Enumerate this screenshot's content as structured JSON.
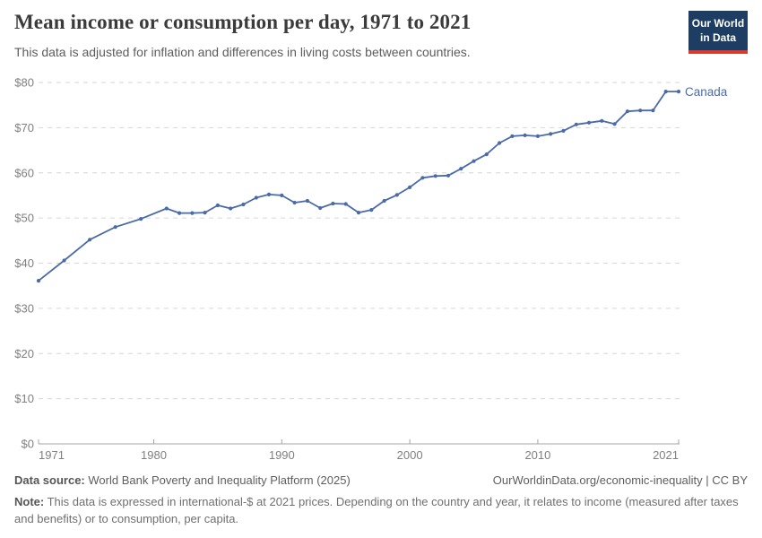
{
  "header": {
    "title": "Mean income or consumption per day, 1971 to 2021",
    "subtitle": "This data is adjusted for inflation and differences in living costs between countries."
  },
  "logo": {
    "line1": "Our World",
    "line2": "in Data",
    "bg_color": "#1d3d63",
    "accent_color": "#d93a2d"
  },
  "chart_data": {
    "type": "line",
    "title": "Mean income or consumption per day, 1971 to 2021",
    "xlabel": "",
    "ylabel": "",
    "unit_prefix": "$",
    "xlim": [
      1971,
      2021
    ],
    "ylim": [
      0,
      80
    ],
    "xticks": [
      1971,
      1980,
      1990,
      2000,
      2010,
      2021
    ],
    "yticks": [
      0,
      10,
      20,
      30,
      40,
      50,
      60,
      70,
      80
    ],
    "grid": "dashed-horizontal",
    "legend_position": "end-of-line-label",
    "series": [
      {
        "name": "Canada",
        "color": "#4a6ba8",
        "points": [
          [
            1971,
            36.1
          ],
          [
            1973,
            40.6
          ],
          [
            1975,
            45.2
          ],
          [
            1977,
            48.0
          ],
          [
            1979,
            49.8
          ],
          [
            1981,
            52.1
          ],
          [
            1982,
            51.1
          ],
          [
            1983,
            51.1
          ],
          [
            1984,
            51.2
          ],
          [
            1985,
            52.8
          ],
          [
            1986,
            52.1
          ],
          [
            1987,
            53.0
          ],
          [
            1988,
            54.5
          ],
          [
            1989,
            55.2
          ],
          [
            1990,
            55.0
          ],
          [
            1991,
            53.4
          ],
          [
            1992,
            53.8
          ],
          [
            1993,
            52.2
          ],
          [
            1994,
            53.2
          ],
          [
            1995,
            53.1
          ],
          [
            1996,
            51.2
          ],
          [
            1997,
            51.8
          ],
          [
            1998,
            53.8
          ],
          [
            1999,
            55.1
          ],
          [
            2000,
            56.8
          ],
          [
            2001,
            58.9
          ],
          [
            2002,
            59.3
          ],
          [
            2003,
            59.4
          ],
          [
            2004,
            60.9
          ],
          [
            2005,
            62.6
          ],
          [
            2006,
            64.1
          ],
          [
            2007,
            66.6
          ],
          [
            2008,
            68.1
          ],
          [
            2009,
            68.3
          ],
          [
            2010,
            68.1
          ],
          [
            2011,
            68.6
          ],
          [
            2012,
            69.3
          ],
          [
            2013,
            70.7
          ],
          [
            2014,
            71.1
          ],
          [
            2015,
            71.5
          ],
          [
            2016,
            70.8
          ],
          [
            2017,
            73.6
          ],
          [
            2018,
            73.8
          ],
          [
            2019,
            73.8
          ],
          [
            2020,
            78.0
          ],
          [
            2021,
            78.0
          ]
        ]
      }
    ]
  },
  "footer": {
    "data_source_label": "Data source:",
    "data_source_value": "World Bank Poverty and Inequality Platform (2025)",
    "attribution": "OurWorldinData.org/economic-inequality | CC BY",
    "note_label": "Note:",
    "note_text": "This data is expressed in international-$ at 2021 prices. Depending on the country and year, it relates to income (measured after taxes and benefits) or to consumption, per capita."
  },
  "colors": {
    "axis_text": "#808080",
    "gridline": "#d6d6d6",
    "axis_line": "#a3a3a3",
    "title_text": "#3b3b3b",
    "subtitle_text": "#5c5c5c"
  }
}
